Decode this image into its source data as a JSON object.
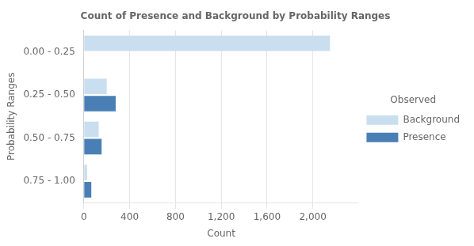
{
  "chart_data": {
    "type": "bar",
    "orientation": "horizontal",
    "title": "Count of Presence and Background by Probability Ranges",
    "categories": [
      "0.00 - 0.25",
      "0.25 - 0.50",
      "0.50 - 0.75",
      "0.75 - 1.00"
    ],
    "series": [
      {
        "name": "Background",
        "color": "#c9dff0",
        "values": [
          2150,
          200,
          130,
          28
        ]
      },
      {
        "name": "Presence",
        "color": "#4a7fb5",
        "values": [
          0,
          278,
          155,
          65
        ]
      }
    ],
    "xlabel": "Count",
    "ylabel": "Probability Ranges",
    "xlim": [
      0,
      2400
    ],
    "xticks": [
      0,
      400,
      800,
      {
        "value": 1200,
        "label": "1,200"
      },
      {
        "value": 1600,
        "label": "1,600"
      },
      {
        "value": 2000,
        "label": "2,000"
      }
    ],
    "grid": true,
    "legend": "right",
    "legend_title": "Observed"
  }
}
